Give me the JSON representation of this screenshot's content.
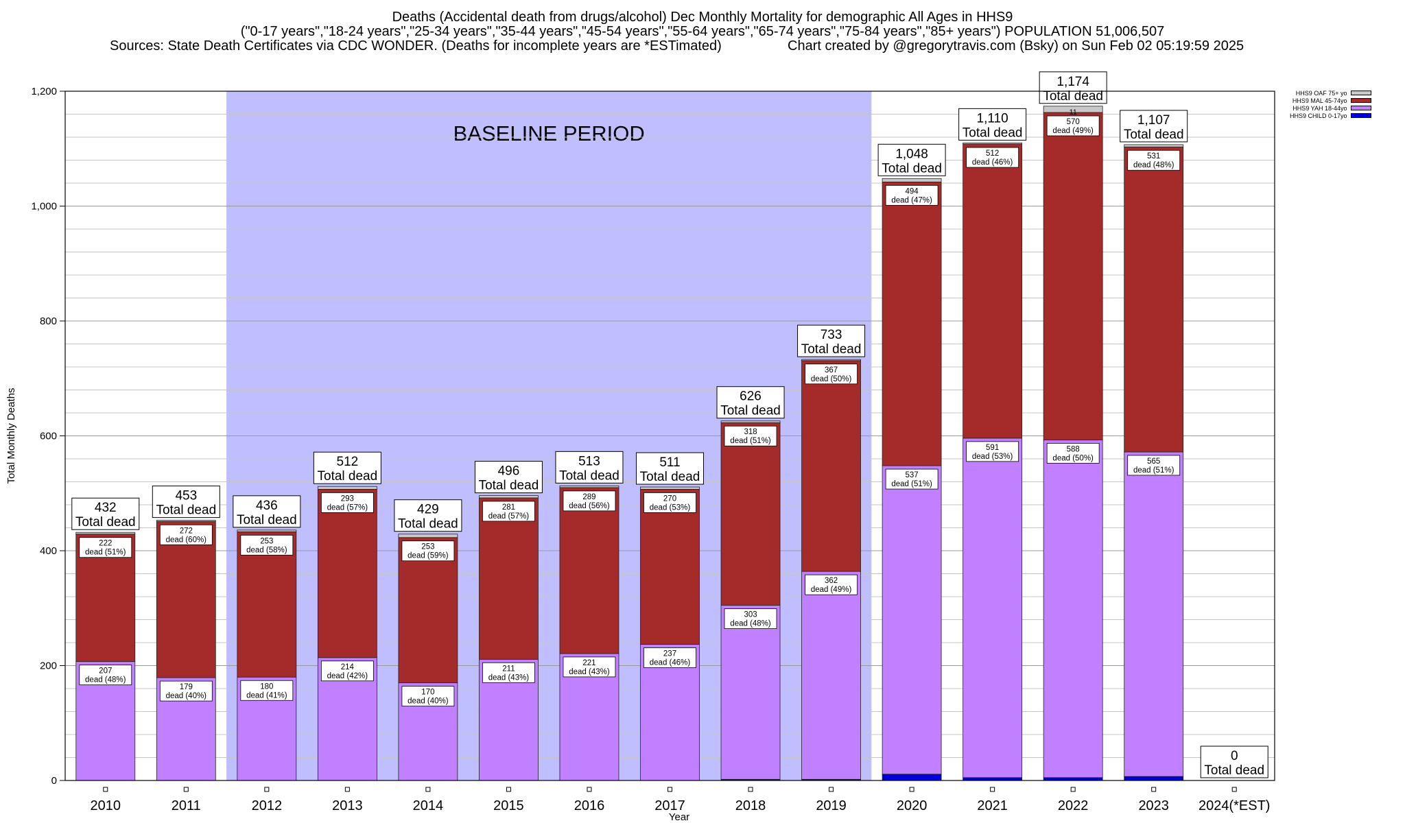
{
  "header": {
    "line1": "Deaths (Accidental death from drugs/alcohol) Dec Monthly Mortality for demographic All Ages in HHS9",
    "line2": "(\"0-17 years\",\"18-24 years\",\"25-34 years\",\"35-44 years\",\"45-54 years\",\"55-64 years\",\"65-74 years\",\"75-84 years\",\"85+ years\") POPULATION 51,006,507",
    "line3_left": "Sources: State Death Certificates via CDC WONDER. (Deaths for incomplete years are *ESTimated)",
    "line3_right": "Chart created by @gregorytravis.com (Bsky) on Sun Feb 02 05:19:59 2025"
  },
  "chart_data": {
    "type": "bar",
    "stacked": true,
    "xlabel": "Year",
    "ylabel": "Total Monthly Deaths",
    "ylim": [
      0,
      1200
    ],
    "yticks": [
      0,
      200,
      400,
      600,
      800,
      1000,
      1200
    ],
    "ytick_labels": [
      "0",
      "200",
      "400",
      "600",
      "800",
      "1,000",
      "1,200"
    ],
    "categories": [
      "2010",
      "2011",
      "2012",
      "2013",
      "2014",
      "2015",
      "2016",
      "2017",
      "2018",
      "2019",
      "2020",
      "2021",
      "2022",
      "2023",
      "2024(*EST)"
    ],
    "baseline_label": "BASELINE PERIOD",
    "baseline_range": [
      "2012",
      "2019"
    ],
    "total_suffix": "Total dead",
    "series": [
      {
        "name": "HHS9 CHILD 0-17yo",
        "color": "#0000dd",
        "values": [
          0,
          0,
          0,
          0,
          0,
          0,
          0,
          0,
          2,
          2,
          11,
          5,
          5,
          7,
          0
        ]
      },
      {
        "name": "HHS9 YAH 18-44yo",
        "color": "#c080ff",
        "values": [
          207,
          179,
          180,
          214,
          170,
          211,
          221,
          237,
          303,
          362,
          537,
          591,
          588,
          565,
          0
        ]
      },
      {
        "name": "HHS9 MAL 45-74yo",
        "color": "#a52a2a",
        "values": [
          222,
          272,
          253,
          293,
          253,
          281,
          289,
          270,
          318,
          367,
          494,
          512,
          570,
          531,
          0
        ]
      },
      {
        "name": "HHS9 OAF 75+ yo",
        "color": "#c8c8c8",
        "values": [
          3,
          2,
          3,
          5,
          6,
          4,
          3,
          4,
          3,
          2,
          6,
          2,
          11,
          4,
          0
        ]
      }
    ],
    "totals": [
      "432",
      "453",
      "436",
      "512",
      "429",
      "496",
      "513",
      "511",
      "626",
      "733",
      "1,048",
      "1,110",
      "1,174",
      "1,107",
      "0"
    ],
    "yah_labels": [
      "207",
      "179",
      "180",
      "214",
      "170",
      "211",
      "221",
      "237",
      "303",
      "362",
      "537",
      "591",
      "588",
      "565"
    ],
    "yah_pcts": [
      "dead (48%)",
      "dead (40%)",
      "dead (41%)",
      "dead (42%)",
      "dead (40%)",
      "dead (43%)",
      "dead (43%)",
      "dead (46%)",
      "dead (48%)",
      "dead (49%)",
      "dead (51%)",
      "dead (53%)",
      "dead (50%)",
      "dead (51%)"
    ],
    "mal_labels": [
      "222",
      "272",
      "253",
      "293",
      "253",
      "281",
      "289",
      "270",
      "318",
      "367",
      "494",
      "512",
      "570",
      "531"
    ],
    "mal_pcts": [
      "dead (51%)",
      "dead (60%)",
      "dead (58%)",
      "dead (57%)",
      "dead (59%)",
      "dead (57%)",
      "dead (56%)",
      "dead (53%)",
      "dead (51%)",
      "dead (50%)",
      "dead (47%)",
      "dead (46%)",
      "dead (49%)",
      "dead (48%)"
    ],
    "oaf_labels": [
      "",
      "",
      "",
      "",
      "",
      "",
      "",
      "",
      "",
      "",
      "",
      "",
      "11",
      "",
      ""
    ],
    "legend": [
      "HHS9 OAF 75+ yo",
      "HHS9 MAL 45-74yo",
      "HHS9 YAH 18-44yo",
      "HHS9 CHILD 0-17yo"
    ],
    "legend_colors": [
      "#c8c8c8",
      "#a52a2a",
      "#c080ff",
      "#0000dd"
    ],
    "legend_position": "top-right",
    "grid": true
  }
}
